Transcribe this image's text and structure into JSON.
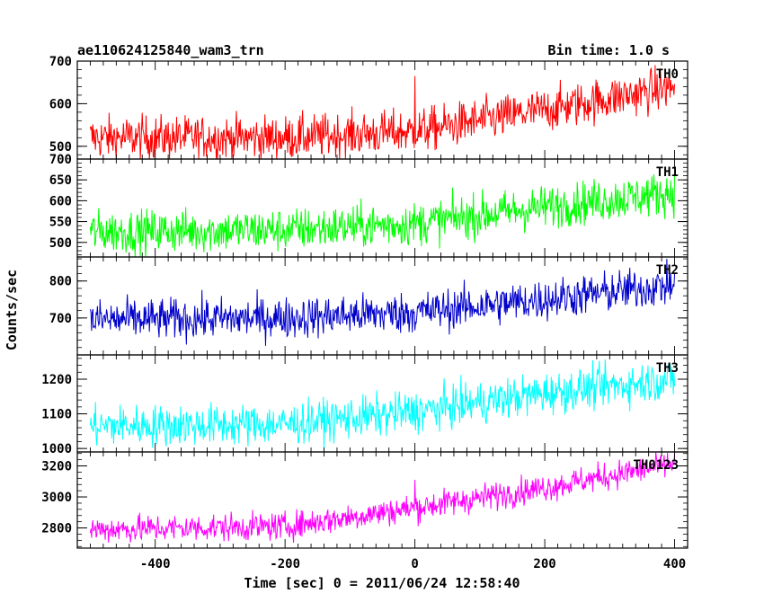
{
  "chart_data": {
    "type": "line",
    "title_left": "ae110624125840_wam3_trn",
    "title_right": "Bin time: 1.0 s",
    "xlabel": "Time [sec] 0 = 2011/06/24 12:58:40",
    "ylabel": "Counts/sec",
    "xlim": [
      -520,
      420
    ],
    "x_ticks": [
      -400,
      -200,
      0,
      200,
      400
    ],
    "x_range": [
      -500,
      400
    ],
    "grid": false,
    "legend": "none",
    "series": [
      {
        "name": "TH0",
        "color": "#ff0000",
        "ylim": [
          470,
          700
        ],
        "y_ticks": [
          500,
          600,
          700
        ],
        "trend": [
          [
            -500,
            520
          ],
          [
            -200,
            520
          ],
          [
            0,
            535
          ],
          [
            200,
            585
          ],
          [
            400,
            640
          ]
        ],
        "noise": 26,
        "spikes": [
          [
            0,
            665
          ]
        ]
      },
      {
        "name": "TH1",
        "color": "#00ff00",
        "ylim": [
          465,
          700
        ],
        "y_ticks": [
          500,
          550,
          600,
          650,
          700
        ],
        "trend": [
          [
            -500,
            525
          ],
          [
            -200,
            530
          ],
          [
            0,
            545
          ],
          [
            200,
            585
          ],
          [
            400,
            620
          ]
        ],
        "noise": 26,
        "spikes": []
      },
      {
        "name": "TH2",
        "color": "#0000cc",
        "ylim": [
          600,
          865
        ],
        "y_ticks": [
          700,
          800
        ],
        "trend": [
          [
            -500,
            695
          ],
          [
            -200,
            700
          ],
          [
            0,
            715
          ],
          [
            200,
            750
          ],
          [
            400,
            790
          ]
        ],
        "noise": 28,
        "spikes": []
      },
      {
        "name": "TH3",
        "color": "#00ffff",
        "ylim": [
          990,
          1270
        ],
        "y_ticks": [
          1000,
          1100,
          1200
        ],
        "trend": [
          [
            -500,
            1065
          ],
          [
            -200,
            1070
          ],
          [
            0,
            1105
          ],
          [
            200,
            1160
          ],
          [
            400,
            1200
          ]
        ],
        "noise": 30,
        "spikes": []
      },
      {
        "name": "TH0123",
        "color": "#ff00ff",
        "ylim": [
          2670,
          3290
        ],
        "y_ticks": [
          2800,
          3000,
          3200
        ],
        "trend": [
          [
            -500,
            2790
          ],
          [
            -200,
            2810
          ],
          [
            0,
            2930
          ],
          [
            200,
            3060
          ],
          [
            400,
            3215
          ]
        ],
        "noise": 45,
        "spikes": [
          [
            0,
            3110
          ]
        ]
      }
    ]
  }
}
